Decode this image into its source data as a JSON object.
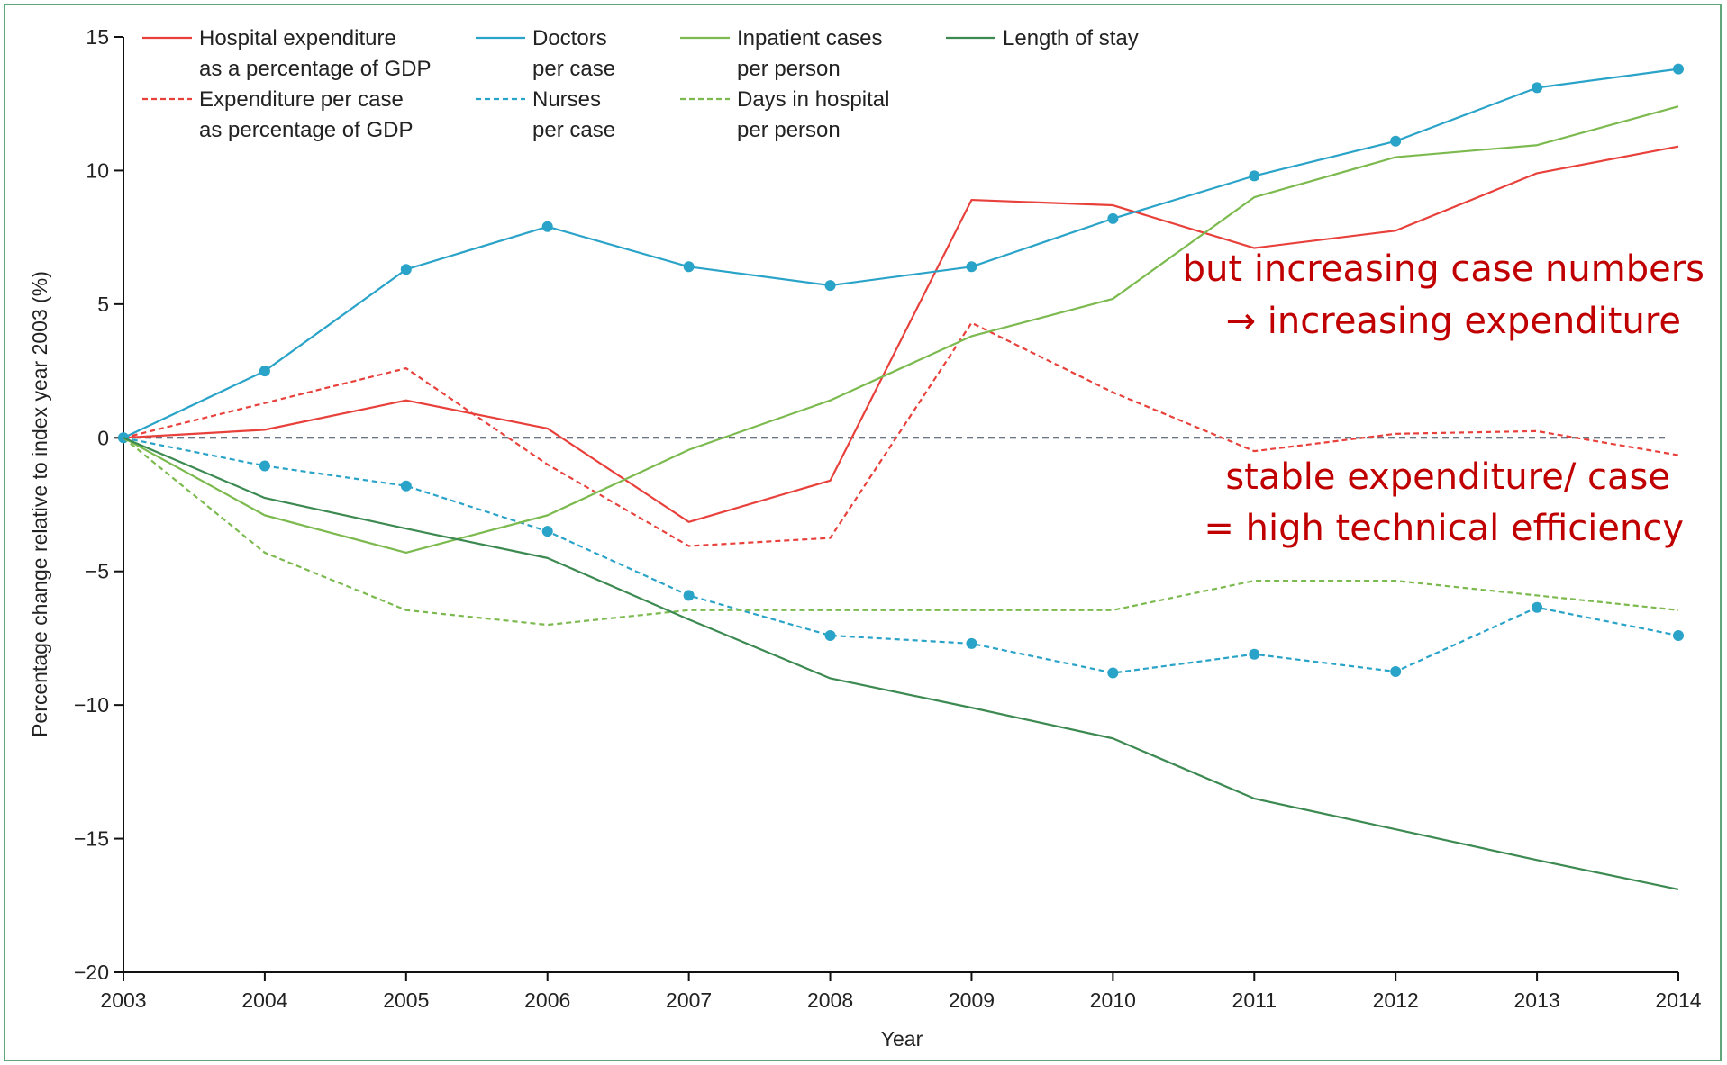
{
  "chart_data": {
    "type": "line",
    "xlabel": "Year",
    "ylabel": "Percentage change relative to index year 2003 (%)",
    "xlim": [
      2003,
      2014
    ],
    "ylim": [
      -20,
      15
    ],
    "x": [
      2003,
      2004,
      2005,
      2006,
      2007,
      2008,
      2009,
      2010,
      2011,
      2012,
      2013,
      2014
    ],
    "x_ticks": [
      "2003",
      "2004",
      "2005",
      "2006",
      "2007",
      "2008",
      "2009",
      "2010",
      "2011",
      "2012",
      "2013",
      "2014"
    ],
    "y_ticks": [
      15,
      10,
      5,
      0,
      -5,
      -10,
      -15,
      -20
    ],
    "y_tick_labels": [
      "15",
      "10",
      "5",
      "0",
      "−5",
      "−10",
      "−15",
      "−20"
    ],
    "reference_line": 0,
    "legend_position": "top",
    "series": [
      {
        "name": "Hospital expenditure as a percentage of GDP",
        "legend_lines": [
          "Hospital expenditure",
          "as a percentage of GDP"
        ],
        "color": "#e8413c",
        "dash": "solid",
        "markers": false,
        "values": [
          0,
          0.3,
          1.4,
          0.35,
          -3.15,
          -1.6,
          8.9,
          8.7,
          7.1,
          7.75,
          9.9,
          10.9
        ]
      },
      {
        "name": "Expenditure per case as percentage of GDP",
        "legend_lines": [
          "Expenditure per case",
          "as percentage of GDP"
        ],
        "color": "#e8413c",
        "dash": "dashed",
        "markers": false,
        "values": [
          0,
          1.3,
          2.6,
          -1.0,
          -4.05,
          -3.75,
          4.3,
          1.7,
          -0.5,
          0.15,
          0.25,
          -0.65
        ]
      },
      {
        "name": "Doctors per case",
        "legend_lines": [
          "Doctors",
          "per case"
        ],
        "color": "#2aa3c8",
        "dash": "solid",
        "markers": true,
        "values": [
          0,
          2.5,
          6.3,
          7.9,
          6.4,
          5.7,
          6.4,
          8.2,
          9.8,
          11.1,
          13.1,
          13.8
        ]
      },
      {
        "name": "Nurses per case",
        "legend_lines": [
          "Nurses",
          "per case"
        ],
        "color": "#2aa3c8",
        "dash": "dashed",
        "markers": true,
        "values": [
          0,
          -1.05,
          -1.8,
          -3.5,
          -5.9,
          -7.4,
          -7.7,
          -8.8,
          -8.1,
          -8.75,
          -6.35,
          -7.4
        ]
      },
      {
        "name": "Inpatient cases per person",
        "legend_lines": [
          "Inpatient cases",
          "per person"
        ],
        "color": "#7cba4f",
        "dash": "solid",
        "markers": false,
        "values": [
          0,
          -2.9,
          -4.3,
          -2.9,
          -0.45,
          1.4,
          3.8,
          5.2,
          9.0,
          10.5,
          10.95,
          12.4
        ]
      },
      {
        "name": "Days in hospital per person",
        "legend_lines": [
          "Days in hospital",
          "per person"
        ],
        "color": "#7cba4f",
        "dash": "dashed",
        "markers": false,
        "values": [
          0,
          -4.3,
          -6.45,
          -7.0,
          -6.45,
          -6.45,
          -6.45,
          -6.45,
          -5.35,
          -5.35,
          -5.9,
          -6.45
        ]
      },
      {
        "name": "Length of stay",
        "legend_lines": [
          "Length of stay"
        ],
        "color": "#3c8a52",
        "dash": "solid",
        "markers": false,
        "values": [
          0,
          -2.25,
          -3.4,
          -4.5,
          -6.8,
          -9.0,
          -10.1,
          -11.25,
          -13.5,
          -14.65,
          -15.8,
          -16.9
        ]
      }
    ],
    "annotations": [
      {
        "lines": [
          "but increasing case numbers",
          "→ increasing expenditure"
        ],
        "color": "#c00000"
      },
      {
        "lines": [
          "stable expenditure/ case",
          "= high technical efficiency"
        ],
        "color": "#c00000"
      }
    ]
  }
}
